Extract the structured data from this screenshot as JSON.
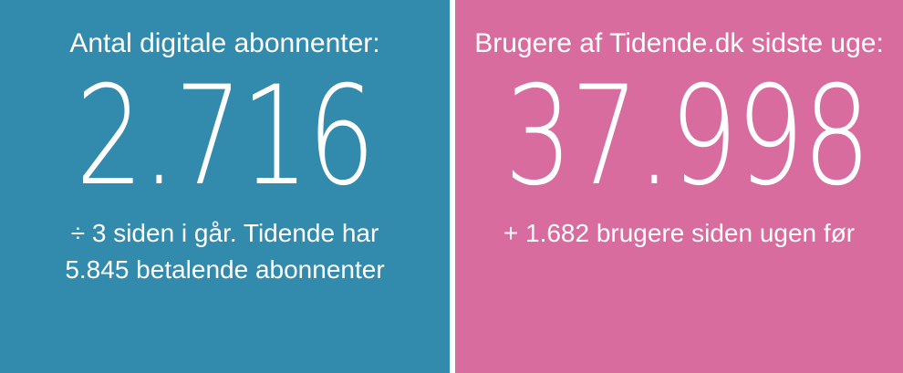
{
  "colors": {
    "left_panel": "#328aad",
    "right_panel": "#d86c9e",
    "text": "#ffffff"
  },
  "left": {
    "label": "Antal digitale abonnenter:",
    "value": "2.716",
    "sub_line1": "÷ 3 siden i går. Tidende har",
    "sub_line2": "5.845 betalende abonnenter"
  },
  "right": {
    "label": "Brugere af Tidende.dk sidste uge:",
    "value": "37.998",
    "sub_line1": "+ 1.682 brugere siden ugen før"
  }
}
